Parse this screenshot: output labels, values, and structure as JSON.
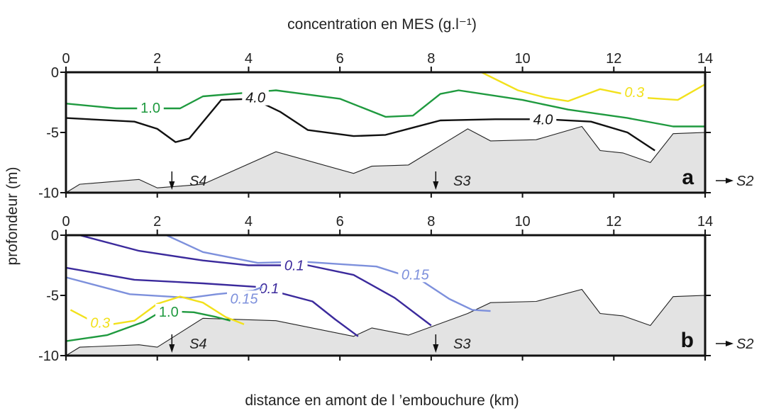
{
  "titles": {
    "top": "concentration en MES (g.l⁻¹)",
    "bottom": "distance en amont de l ’embouchure (km)",
    "ylabel": "profondeur (m)"
  },
  "chart_data": {
    "type": "line",
    "xlim": [
      0,
      14
    ],
    "x_ticks": [
      0,
      2,
      4,
      6,
      8,
      10,
      12,
      14
    ],
    "ylim": [
      -10,
      0
    ],
    "y_ticks": [
      0,
      -5,
      -10
    ],
    "downstream_label": "S2",
    "colors": {
      "bed_fill": "#e3e3e3",
      "bed_line": "#222222",
      "green": "#1f9a3f",
      "black": "#111111",
      "yellow": "#f2e11c",
      "dark_blue": "#3b2a9c",
      "light_blue": "#7d90dc"
    },
    "panels": [
      {
        "id": "a",
        "label": "a",
        "bed": {
          "x": [
            0,
            0.3,
            1.6,
            2,
            3,
            4.6,
            6.3,
            6.7,
            7.5,
            8.8,
            9.3,
            10.3,
            11.3,
            11.7,
            12.2,
            12.8,
            13.3,
            14
          ],
          "y": [
            -10,
            -9.3,
            -8.9,
            -9.6,
            -9.3,
            -6.6,
            -8.4,
            -7.8,
            -7.7,
            -4.7,
            -5.7,
            -5.6,
            -4.5,
            -6.5,
            -6.7,
            -7.5,
            -5.1,
            -5
          ]
        },
        "stations": [
          {
            "name": "S4",
            "x": 2.32
          },
          {
            "name": "S3",
            "x": 8.1
          }
        ],
        "isolines": [
          {
            "label": "1.0",
            "color": "green",
            "x": [
              0,
              1.1,
              2.5,
              3,
              4.6,
              6,
              7,
              7.6,
              8.2,
              8.6,
              10,
              11,
              12.3,
              13.3,
              14
            ],
            "y": [
              -2.6,
              -3,
              -3,
              -2,
              -1.5,
              -2.2,
              -3.7,
              -3.6,
              -1.8,
              -1.5,
              -2.3,
              -3.1,
              -3.8,
              -4.5,
              -4.5
            ],
            "label_pos": [
              1.85,
              -2.95
            ]
          },
          {
            "label": "4.0",
            "color": "black",
            "x": [
              0,
              1.5,
              2,
              2.4,
              2.7,
              3.4,
              4.1,
              4.7,
              5.3,
              6.3,
              7,
              7.6,
              8.2,
              9.4,
              10.5,
              11.5,
              12.3,
              12.9
            ],
            "y": [
              -3.8,
              -4.1,
              -4.7,
              -5.8,
              -5.5,
              -2.3,
              -2.2,
              -3.3,
              -4.8,
              -5.3,
              -5.2,
              -4.6,
              -4,
              -3.9,
              -3.9,
              -4.1,
              -5,
              -6.5
            ],
            "label_pos": [
              4.15,
              -2.1
            ],
            "label_pos2": [
              10.45,
              -3.9
            ]
          },
          {
            "label": "0.3",
            "color": "yellow",
            "x": [
              9.1,
              9.9,
              10.5,
              11,
              11.7,
              12.6,
              13.4,
              14
            ],
            "y": [
              0,
              -1.5,
              -2.1,
              -2.4,
              -1.4,
              -2.1,
              -2.3,
              -1
            ],
            "label_pos": [
              12.45,
              -1.65
            ]
          }
        ]
      },
      {
        "id": "b",
        "label": "b",
        "bed": {
          "x": [
            0,
            0.3,
            1.6,
            2,
            3,
            4.6,
            6.3,
            6.7,
            7.5,
            8.8,
            9.3,
            10.3,
            11.3,
            11.7,
            12.2,
            12.8,
            13.3,
            14
          ],
          "y": [
            -10,
            -9.3,
            -9.1,
            -9.3,
            -6.9,
            -7.1,
            -8.4,
            -7.7,
            -8.3,
            -6.5,
            -5.6,
            -5.5,
            -4.5,
            -6.5,
            -6.7,
            -7.5,
            -5.1,
            -5
          ]
        },
        "stations": [
          {
            "name": "S4",
            "x": 2.32
          },
          {
            "name": "S3",
            "x": 8.1
          }
        ],
        "isolines": [
          {
            "label": "0.15",
            "color": "light_blue",
            "x": [
              2.2,
              3,
              4.2,
              5.2,
              6.8,
              7.8,
              8.4,
              8.9,
              9.3
            ],
            "y": [
              0,
              -1.4,
              -2.3,
              -2.2,
              -2.6,
              -3.8,
              -5.3,
              -6.2,
              -6.3
            ],
            "label_pos": [
              7.65,
              -3.25
            ]
          },
          {
            "label": "0.1",
            "color": "dark_blue",
            "x": [
              0.3,
              1.6,
              3,
              4,
              5.3,
              6.3,
              7.2,
              8
            ],
            "y": [
              0,
              -1.3,
              -2.1,
              -2.5,
              -2.5,
              -3.3,
              -5.2,
              -7.5
            ],
            "label_pos": [
              5,
              -2.5
            ]
          },
          {
            "label": "0.1",
            "color": "dark_blue",
            "x": [
              0,
              1.5,
              3,
              4.2,
              5.4,
              5.9,
              6.4
            ],
            "y": [
              -2.7,
              -3.7,
              -4,
              -4.3,
              -5.5,
              -7,
              -8.4
            ],
            "label_pos": [
              4.45,
              -4.4
            ]
          },
          {
            "label": "0.15",
            "color": "light_blue",
            "x": [
              0,
              1.4,
              2.7,
              3.3,
              4.1,
              4.3
            ],
            "y": [
              -3.5,
              -4.9,
              -5.2,
              -4.9,
              -4.6,
              -4.3
            ],
            "label_pos": [
              3.9,
              -5.25
            ]
          },
          {
            "label": "0.3",
            "color": "yellow",
            "x": [
              0.1,
              0.5,
              1,
              1.5,
              2,
              2.5,
              3,
              3.5,
              3.9
            ],
            "y": [
              -6.2,
              -7,
              -7.4,
              -7.1,
              -5.7,
              -5.1,
              -5.6,
              -6.8,
              -7.4
            ],
            "label_pos": [
              0.75,
              -7.25
            ]
          },
          {
            "label": "1.0",
            "color": "green",
            "x": [
              0,
              0.9,
              1.7,
              2.1,
              2.8,
              3.3,
              3.6
            ],
            "y": [
              -8.8,
              -8.3,
              -7.2,
              -6.3,
              -6.4,
              -6.8,
              -7.1
            ],
            "label_pos": [
              2.25,
              -6.35
            ]
          }
        ]
      }
    ]
  }
}
